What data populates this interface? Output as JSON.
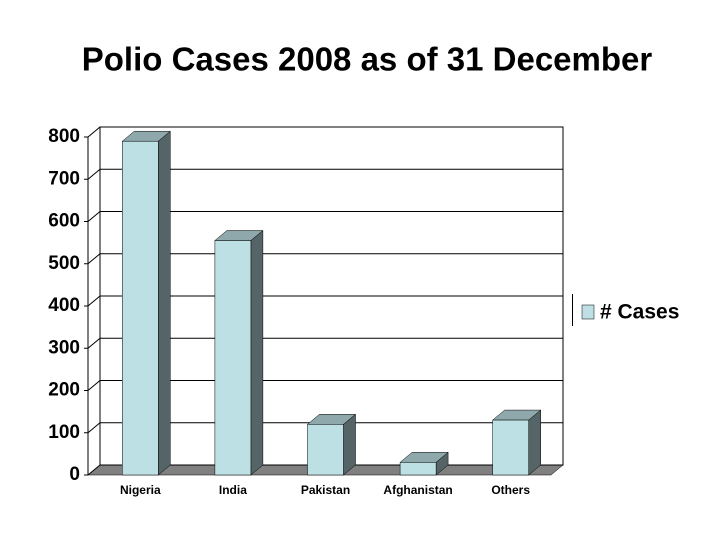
{
  "chart_data": {
    "type": "bar",
    "title": "Polio Cases 2008 as of 31 December",
    "categories": [
      "Nigeria",
      "India",
      "Pakistan",
      "Afghanistan",
      "Others"
    ],
    "series": [
      {
        "name": "# Cases",
        "color": "#bde0e4",
        "values": [
          790,
          555,
          120,
          30,
          130
        ]
      }
    ],
    "ylim": [
      0,
      800
    ],
    "yticks": [
      0,
      100,
      200,
      300,
      400,
      500,
      600,
      700,
      800
    ],
    "grid": true,
    "legend": "right"
  }
}
